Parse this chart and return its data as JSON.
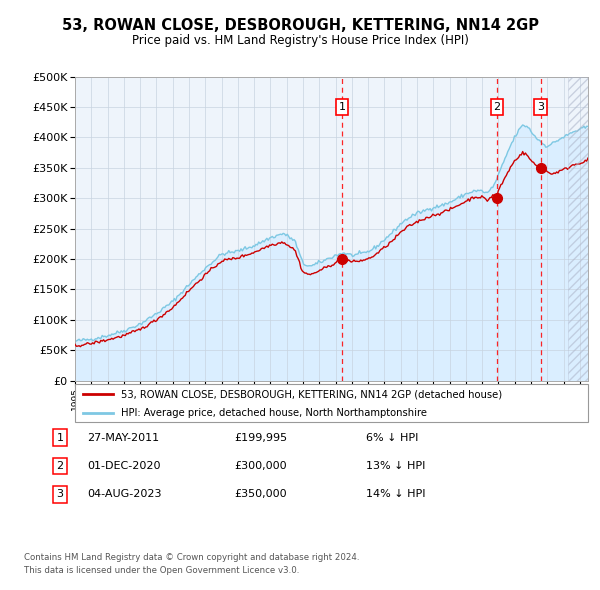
{
  "title": "53, ROWAN CLOSE, DESBOROUGH, KETTERING, NN14 2GP",
  "subtitle": "Price paid vs. HM Land Registry's House Price Index (HPI)",
  "legend_line1": "53, ROWAN CLOSE, DESBOROUGH, KETTERING, NN14 2GP (detached house)",
  "legend_line2": "HPI: Average price, detached house, North Northamptonshire",
  "footer1": "Contains HM Land Registry data © Crown copyright and database right 2024.",
  "footer2": "This data is licensed under the Open Government Licence v3.0.",
  "transactions": [
    {
      "num": 1,
      "date": "27-MAY-2011",
      "price": 199995,
      "pct": "6%",
      "direction": "↓"
    },
    {
      "num": 2,
      "date": "01-DEC-2020",
      "price": 300000,
      "pct": "13%",
      "direction": "↓"
    },
    {
      "num": 3,
      "date": "04-AUG-2023",
      "price": 350000,
      "pct": "14%",
      "direction": "↓"
    }
  ],
  "transaction_years": [
    2011.4,
    2020.92,
    2023.59
  ],
  "transaction_prices": [
    199995,
    300000,
    350000
  ],
  "hpi_color": "#7ec8e3",
  "price_color": "#cc0000",
  "fill_color": "#daeeff",
  "ylim": [
    0,
    500000
  ],
  "xlim_start": 1995,
  "xlim_end": 2026.5,
  "hpi_keypoints": [
    [
      1995.0,
      65000
    ],
    [
      1996.0,
      68000
    ],
    [
      1997.0,
      74000
    ],
    [
      1998.0,
      82000
    ],
    [
      1999.0,
      93000
    ],
    [
      2000.0,
      110000
    ],
    [
      2001.0,
      130000
    ],
    [
      2002.0,
      158000
    ],
    [
      2003.0,
      185000
    ],
    [
      2004.0,
      208000
    ],
    [
      2005.0,
      213000
    ],
    [
      2006.0,
      222000
    ],
    [
      2007.0,
      235000
    ],
    [
      2007.8,
      242000
    ],
    [
      2008.5,
      230000
    ],
    [
      2009.0,
      192000
    ],
    [
      2009.5,
      188000
    ],
    [
      2010.0,
      194000
    ],
    [
      2010.5,
      200000
    ],
    [
      2011.0,
      206000
    ],
    [
      2011.5,
      210000
    ],
    [
      2012.0,
      206000
    ],
    [
      2012.5,
      208000
    ],
    [
      2013.0,
      212000
    ],
    [
      2013.5,
      220000
    ],
    [
      2014.0,
      232000
    ],
    [
      2014.5,
      244000
    ],
    [
      2015.0,
      258000
    ],
    [
      2015.5,
      268000
    ],
    [
      2016.0,
      275000
    ],
    [
      2016.5,
      280000
    ],
    [
      2017.0,
      285000
    ],
    [
      2017.5,
      288000
    ],
    [
      2018.0,
      293000
    ],
    [
      2018.5,
      300000
    ],
    [
      2019.0,
      307000
    ],
    [
      2019.5,
      312000
    ],
    [
      2020.0,
      312000
    ],
    [
      2020.3,
      308000
    ],
    [
      2020.7,
      320000
    ],
    [
      2021.0,
      338000
    ],
    [
      2021.3,
      358000
    ],
    [
      2021.6,
      378000
    ],
    [
      2021.9,
      395000
    ],
    [
      2022.2,
      410000
    ],
    [
      2022.5,
      420000
    ],
    [
      2022.8,
      418000
    ],
    [
      2023.0,
      410000
    ],
    [
      2023.3,
      400000
    ],
    [
      2023.6,
      393000
    ],
    [
      2023.9,
      386000
    ],
    [
      2024.2,
      388000
    ],
    [
      2024.5,
      393000
    ],
    [
      2024.8,
      398000
    ],
    [
      2025.2,
      403000
    ],
    [
      2025.5,
      408000
    ],
    [
      2026.0,
      413000
    ],
    [
      2026.5,
      418000
    ]
  ],
  "price_keypoints": [
    [
      1995.0,
      57000
    ],
    [
      1996.0,
      61000
    ],
    [
      1997.0,
      67000
    ],
    [
      1998.0,
      74000
    ],
    [
      1999.0,
      84000
    ],
    [
      2000.0,
      100000
    ],
    [
      2001.0,
      120000
    ],
    [
      2002.0,
      148000
    ],
    [
      2003.0,
      174000
    ],
    [
      2004.0,
      197000
    ],
    [
      2005.0,
      202000
    ],
    [
      2006.0,
      211000
    ],
    [
      2007.0,
      223000
    ],
    [
      2007.8,
      228000
    ],
    [
      2008.5,
      215000
    ],
    [
      2009.0,
      178000
    ],
    [
      2009.5,
      174000
    ],
    [
      2010.0,
      181000
    ],
    [
      2010.5,
      187000
    ],
    [
      2011.0,
      194000
    ],
    [
      2011.4,
      199995
    ],
    [
      2011.5,
      200500
    ],
    [
      2012.0,
      195000
    ],
    [
      2012.5,
      197000
    ],
    [
      2013.0,
      200000
    ],
    [
      2013.5,
      208000
    ],
    [
      2014.0,
      219000
    ],
    [
      2014.5,
      230000
    ],
    [
      2015.0,
      244000
    ],
    [
      2015.5,
      254000
    ],
    [
      2016.0,
      261000
    ],
    [
      2016.5,
      267000
    ],
    [
      2017.0,
      272000
    ],
    [
      2017.5,
      276000
    ],
    [
      2018.0,
      281000
    ],
    [
      2018.5,
      288000
    ],
    [
      2019.0,
      295000
    ],
    [
      2019.5,
      302000
    ],
    [
      2020.0,
      302000
    ],
    [
      2020.3,
      296000
    ],
    [
      2020.7,
      306000
    ],
    [
      2020.92,
      300000
    ],
    [
      2021.0,
      314000
    ],
    [
      2021.3,
      328000
    ],
    [
      2021.6,
      344000
    ],
    [
      2021.9,
      358000
    ],
    [
      2022.2,
      368000
    ],
    [
      2022.5,
      375000
    ],
    [
      2022.8,
      370000
    ],
    [
      2023.0,
      362000
    ],
    [
      2023.3,
      354000
    ],
    [
      2023.59,
      350000
    ],
    [
      2023.9,
      346000
    ],
    [
      2024.2,
      340000
    ],
    [
      2024.5,
      342000
    ],
    [
      2024.8,
      345000
    ],
    [
      2025.2,
      349000
    ],
    [
      2025.5,
      354000
    ],
    [
      2026.0,
      358000
    ],
    [
      2026.5,
      363000
    ]
  ]
}
